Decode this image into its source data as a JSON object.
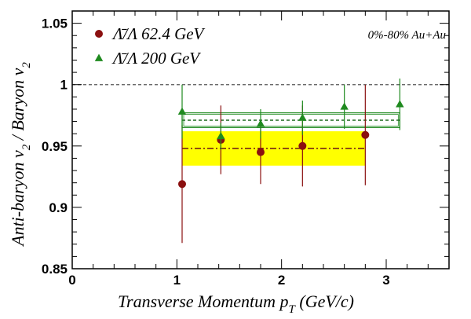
{
  "chart_data": {
    "type": "scatter",
    "xlabel": "Transverse Momentum p",
    "xlabel_sub": "T",
    "xlabel_unit": " (GeV/c)",
    "ylabel_parts": [
      "Anti-baryon v",
      "2",
      " / Baryon v",
      "2"
    ],
    "xlim": [
      0,
      3.6
    ],
    "ylim": [
      0.85,
      1.06
    ],
    "xticks": [
      0,
      1,
      2,
      3
    ],
    "yticks": [
      0.85,
      0.9,
      0.95,
      1,
      1.05
    ],
    "xtick_labels": [
      "0",
      "1",
      "2",
      "3"
    ],
    "ytick_labels": [
      "0.85",
      "0.9",
      "0.95",
      "1",
      "1.05"
    ],
    "reference_line": 1.0,
    "annotation": "0%-80% Au+Au",
    "legend_position": "top-left",
    "series": [
      {
        "name": "Λ̄/Λ 62.4 GeV",
        "marker": "circle",
        "color": "#8b1010",
        "x": [
          1.05,
          1.42,
          1.8,
          2.2,
          2.8
        ],
        "y": [
          0.919,
          0.955,
          0.945,
          0.95,
          0.959
        ],
        "yerr": [
          0.048,
          0.028,
          0.026,
          0.033,
          0.041
        ],
        "mean": 0.948,
        "band": {
          "x_range": [
            1.05,
            2.8
          ],
          "y_range": [
            0.934,
            0.962
          ],
          "color": "#ffff00"
        }
      },
      {
        "name": "Λ̄/Λ 200 GeV",
        "marker": "triangle",
        "color": "#1f8a1f",
        "x": [
          1.05,
          1.42,
          1.8,
          2.2,
          2.6,
          3.13
        ],
        "y": [
          0.978,
          0.958,
          0.968,
          0.973,
          0.982,
          0.984
        ],
        "yerr": [
          0.022,
          0.011,
          0.012,
          0.014,
          0.018,
          0.021
        ],
        "mean": 0.971,
        "band": {
          "x_range": [
            1.05,
            3.13
          ],
          "y_range": [
            0.965,
            0.977
          ],
          "color": "#1f8a1f"
        }
      }
    ]
  }
}
